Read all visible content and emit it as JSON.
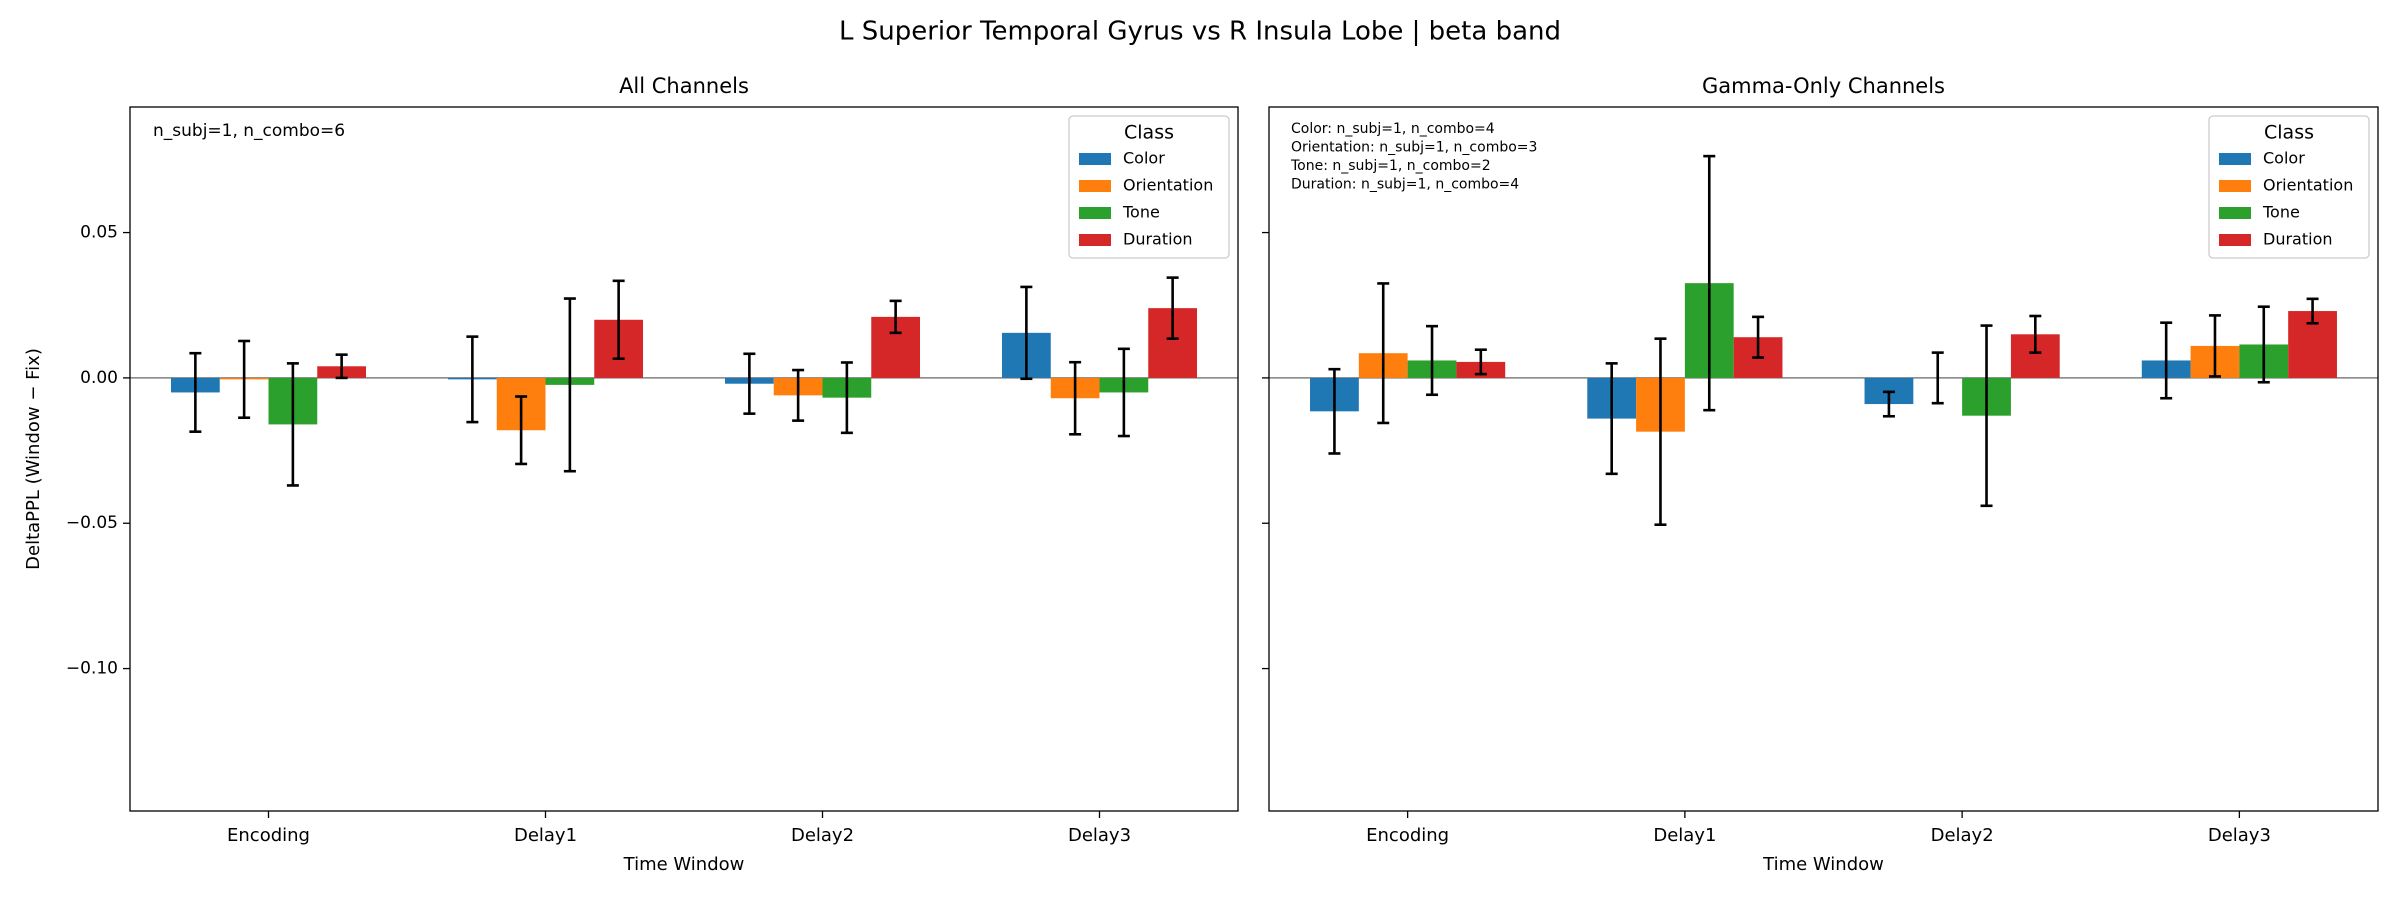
{
  "title": "L Superior Temporal Gyrus vs R Insula Lobe  |  beta band",
  "chart_data": [
    {
      "type": "bar",
      "title": "All Channels",
      "xlabel": "Time Window",
      "ylabel": "DeltaPPL (Window − Fix)",
      "categories": [
        "Encoding",
        "Delay1",
        "Delay2",
        "Delay3"
      ],
      "ylim": [
        -0.149,
        0.0932
      ],
      "yticks": [
        {
          "value": -0.1,
          "label": "−0.10"
        },
        {
          "value": -0.05,
          "label": "−0.05"
        },
        {
          "value": 0,
          "label": "0.00"
        },
        {
          "value": 0.05,
          "label": "0.05"
        }
      ],
      "ytick_labels": true,
      "legend_title": "Class",
      "legend": "upper right",
      "annotations": [
        "n_subj=1, n_combo=6"
      ],
      "series": [
        {
          "name": "Color",
          "color": "#1f77b4",
          "values": [
            -0.005,
            -0.0005,
            -0.002,
            0.0155
          ],
          "errors": [
            0.0135,
            0.0147,
            0.0103,
            0.0158
          ]
        },
        {
          "name": "Orientation",
          "color": "#ff7f0e",
          "values": [
            -0.0005,
            -0.018,
            -0.006,
            -0.007
          ],
          "errors": [
            0.0132,
            0.0116,
            0.0087,
            0.0124
          ]
        },
        {
          "name": "Tone",
          "color": "#2ca02c",
          "values": [
            -0.016,
            -0.0024,
            -0.0068,
            -0.005
          ],
          "errors": [
            0.021,
            0.0297,
            0.0121,
            0.015
          ]
        },
        {
          "name": "Duration",
          "color": "#d62728",
          "values": [
            0.004,
            0.02,
            0.021,
            0.024
          ],
          "errors": [
            0.004,
            0.0134,
            0.0055,
            0.0105
          ]
        }
      ]
    },
    {
      "type": "bar",
      "title": "Gamma-Only Channels",
      "xlabel": "Time Window",
      "categories": [
        "Encoding",
        "Delay1",
        "Delay2",
        "Delay3"
      ],
      "ylim": [
        -0.149,
        0.0932
      ],
      "yticks": [
        -0.1,
        -0.05,
        0,
        0.05
      ],
      "ytick_labels": false,
      "legend_title": "Class",
      "legend": "upper right",
      "annotations": [
        "Color: n_subj=1, n_combo=4",
        "Orientation: n_subj=1, n_combo=3",
        "Tone: n_subj=1, n_combo=2",
        "Duration: n_subj=1, n_combo=4"
      ],
      "series": [
        {
          "name": "Color",
          "color": "#1f77b4",
          "values": [
            -0.0115,
            -0.014,
            -0.009,
            0.006
          ],
          "errors": [
            0.0145,
            0.019,
            0.0042,
            0.013
          ]
        },
        {
          "name": "Orientation",
          "color": "#ff7f0e",
          "values": [
            0.0085,
            -0.0185,
            0,
            0.011
          ],
          "errors": [
            0.024,
            0.032,
            0.0087,
            0.0105
          ]
        },
        {
          "name": "Tone",
          "color": "#2ca02c",
          "values": [
            0.006,
            0.0326,
            -0.013,
            0.0115
          ],
          "errors": [
            0.0118,
            0.0437,
            0.031,
            0.013
          ]
        },
        {
          "name": "Duration",
          "color": "#d62728",
          "values": [
            0.0055,
            0.014,
            0.015,
            0.023
          ],
          "errors": [
            0.0042,
            0.007,
            0.0063,
            0.0042
          ]
        }
      ]
    }
  ]
}
